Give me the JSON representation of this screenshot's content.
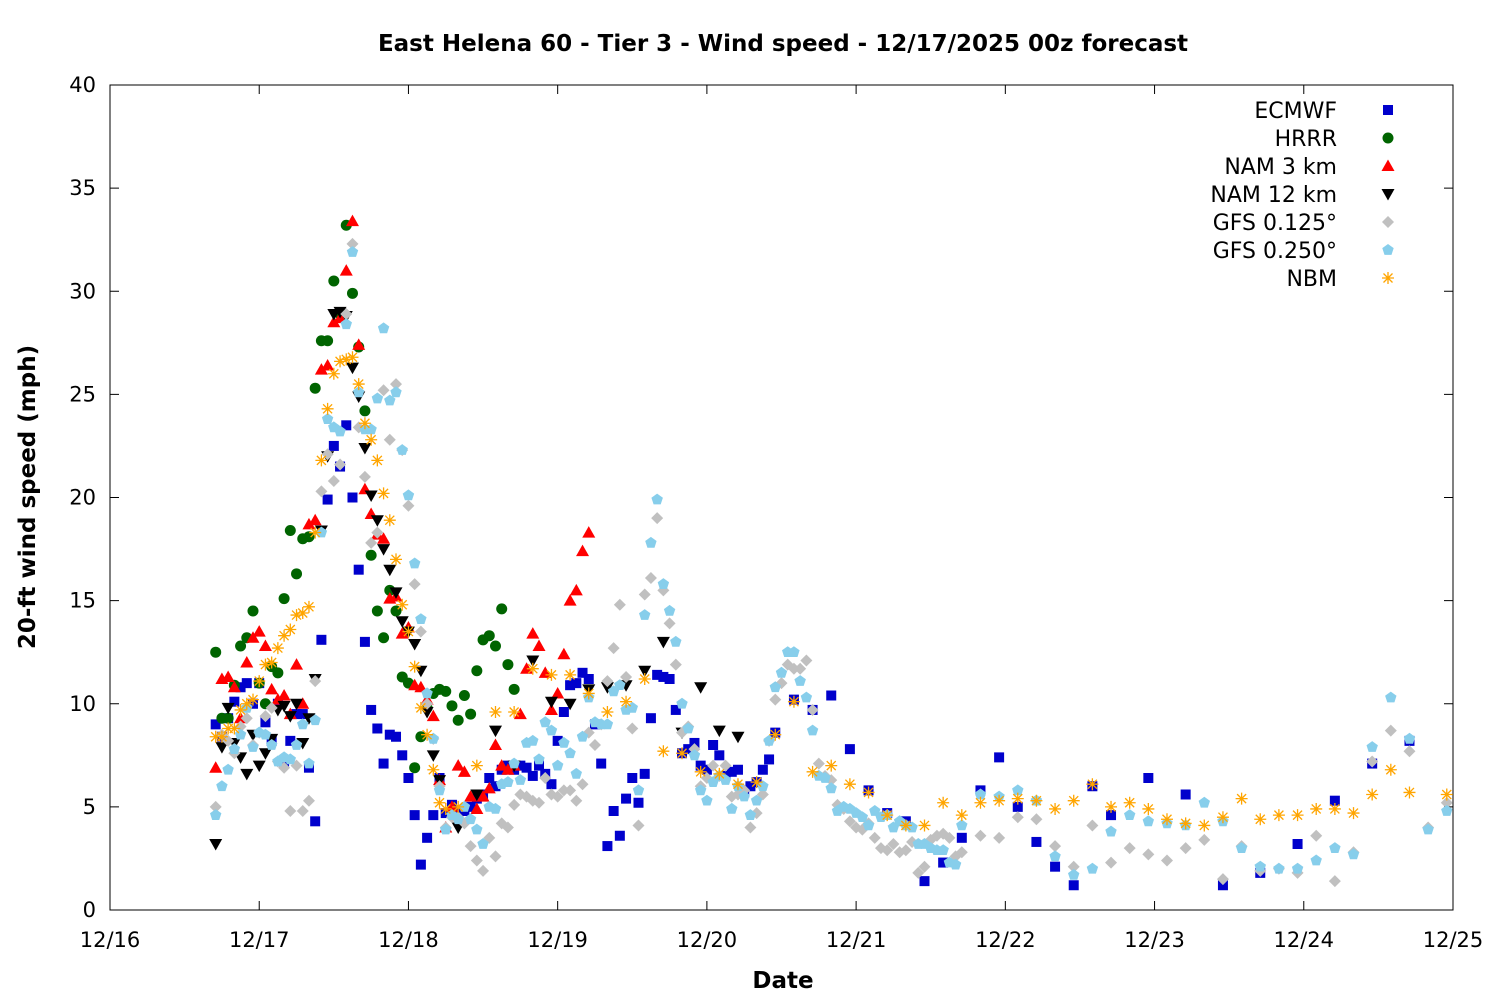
{
  "chart_data": {
    "type": "scatter",
    "title": "East Helena 60 - Tier 3 - Wind speed - 12/17/2025 00z forecast",
    "xlabel": "Date",
    "ylabel": "20-ft wind speed (mph)",
    "xlim": [
      "2025-12-16T00:00Z",
      "2025-12-25T00:00Z"
    ],
    "ylim": [
      0,
      40
    ],
    "x_ticks": [
      "12/16",
      "12/17",
      "12/18",
      "12/19",
      "12/20",
      "12/21",
      "12/22",
      "12/23",
      "12/24",
      "12/25"
    ],
    "y_ticks": [
      "0",
      "5",
      "10",
      "15",
      "20",
      "25",
      "30",
      "35",
      "40"
    ],
    "grid": false,
    "legend_position": "top-right",
    "series": [
      {
        "name": "ECMWF",
        "marker": "square",
        "color": "#0000cc",
        "segments": [
          {
            "start": "2025-12-16T17:00Z",
            "step_hours": 1,
            "values": [
              9.0,
              8.4,
              9.3,
              10.1,
              10.8,
              11.0,
              10.0,
              11.0,
              9.1,
              8.2,
              10.0,
              7.2,
              8.2,
              9.5,
              9.5,
              6.9,
              4.3,
              13.1,
              19.9,
              22.5,
              21.5,
              23.5,
              20.0,
              16.5,
              13.0,
              9.7,
              8.8,
              7.1,
              8.5,
              8.4,
              7.5,
              6.4,
              4.6,
              2.2,
              3.5,
              4.6,
              6.4,
              4.7,
              5.1,
              4.7,
              4.8,
              5.0,
              5.4,
              5.6,
              6.4,
              6.0,
              6.8,
              7.0,
              6.8,
              7.0,
              6.9,
              6.5,
              7.0,
              6.6,
              6.1,
              8.2,
              9.6,
              10.9,
              11.0,
              11.5,
              11.2,
              9.0,
              7.1,
              3.1,
              4.8,
              3.6,
              5.4,
              6.4,
              5.2,
              6.6,
              9.3,
              11.4,
              11.3,
              11.2,
              9.7,
              7.6,
              7.8,
              8.1,
              7.0,
              6.8,
              8.0,
              7.5,
              6.5,
              6.7,
              6.8,
              5.7,
              6.0,
              6.2,
              6.8,
              7.3,
              8.6
            ]
          },
          {
            "start": "2025-12-20T14:00Z",
            "step_hours": 3,
            "values": [
              10.2,
              9.7,
              10.4,
              7.8,
              5.8,
              4.7,
              4.3,
              1.4,
              2.3,
              3.5,
              5.8,
              7.4,
              5.0,
              3.3,
              2.1,
              1.2,
              6.0
            ]
          },
          {
            "start": "2025-12-22T17:00Z",
            "step_hours": 6,
            "values": [
              4.6,
              6.4,
              5.6,
              1.2,
              1.8,
              3.2,
              5.3,
              7.1,
              8.2
            ]
          }
        ]
      },
      {
        "name": "HRRR",
        "marker": "circle",
        "color": "#006400",
        "segments": [
          {
            "start": "2025-12-16T17:00Z",
            "step_hours": 1,
            "values": [
              12.5,
              9.3,
              9.3,
              10.9,
              12.8,
              13.2,
              14.5,
              11.0,
              10.0,
              11.8,
              11.5,
              15.1,
              18.4,
              16.3,
              18.0,
              18.1,
              25.3,
              27.6,
              27.6,
              30.5,
              28.9,
              33.2,
              29.9,
              27.3,
              24.2,
              17.2,
              14.5,
              13.2,
              15.5,
              14.5,
              11.3,
              11.0,
              6.9,
              8.4,
              9.8,
              10.5,
              10.7,
              10.6,
              9.9,
              9.2,
              10.4,
              9.5,
              11.6,
              13.1,
              13.3,
              12.8,
              14.6,
              11.9,
              10.7
            ]
          }
        ]
      },
      {
        "name": "NAM 3 km",
        "marker": "triangle-up",
        "color": "#ff0000",
        "segments": [
          {
            "start": "2025-12-16T17:00Z",
            "step_hours": 1,
            "values": [
              6.9,
              11.2,
              11.3,
              10.8,
              9.3,
              12.0,
              13.2,
              13.5,
              12.8,
              10.7,
              10.2,
              10.4,
              9.5,
              11.9,
              10.0,
              18.7,
              18.9,
              26.2,
              26.4,
              28.5,
              28.7,
              31.0,
              33.4,
              27.4,
              20.4,
              19.2,
              18.2,
              18.0,
              15.1,
              15.2,
              13.4,
              13.7,
              10.9,
              10.8,
              10.2,
              9.4,
              6.3,
              4.0,
              5.0,
              7.0,
              6.7,
              5.5,
              4.9,
              5.5,
              5.9,
              8.0,
              7.0,
              6.8,
              7.0,
              9.5,
              11.7,
              13.4,
              12.8,
              11.5,
              9.7,
              10.5,
              12.4,
              15.0,
              15.5,
              17.4,
              18.3
            ]
          }
        ]
      },
      {
        "name": "NAM 12 km",
        "marker": "triangle-down",
        "color": "#000000",
        "segments": [
          {
            "start": "2025-12-16T17:00Z",
            "step_hours": 1,
            "values": [
              3.2,
              7.9,
              9.8,
              8.1,
              7.4,
              6.6,
              8.5,
              7.0,
              7.6,
              8.3,
              9.7,
              9.9,
              9.4,
              10.0,
              8.1,
              9.3,
              11.2,
              18.4,
              22.0,
              28.9,
              29.0,
              28.8,
              26.3,
              24.9,
              22.4,
              20.1,
              18.9,
              17.5,
              16.5,
              15.4,
              14.0,
              13.5,
              12.9,
              11.6,
              9.6,
              7.5,
              6.3
            ]
          },
          {
            "start": "2025-12-18T08:00Z",
            "step_hours": 3,
            "values": [
              4.0,
              5.6,
              8.7,
              7.0,
              12.1,
              10.1,
              10.0,
              10.7,
              10.8,
              10.9,
              11.6,
              13.0,
              8.6,
              10.8,
              8.7,
              8.4
            ]
          }
        ]
      },
      {
        "name": "GFS 0.125°",
        "marker": "diamond",
        "color": "#c0c0c0",
        "segments": [
          {
            "start": "2025-12-16T17:00Z",
            "step_hours": 1,
            "values": [
              5.0,
              8.5,
              8.2,
              7.6,
              8.9,
              9.3,
              8.0,
              8.6,
              9.4,
              9.8,
              7.2,
              6.9,
              4.8,
              7.0,
              4.8,
              5.3,
              11.1,
              20.3,
              22.1,
              20.8,
              21.6,
              28.9,
              32.3,
              23.4,
              21.0,
              17.8,
              18.3,
              25.2,
              22.8,
              25.5,
              22.3,
              19.6,
              15.8,
              13.5,
              10.0,
              8.3,
              6.0,
              4.0,
              4.5,
              4.5,
              4.2,
              3.1,
              2.4,
              1.9,
              3.5,
              2.6,
              4.2,
              4.0,
              5.1,
              5.6,
              5.5,
              5.3,
              5.2,
              6.4,
              5.6,
              5.5,
              5.8,
              5.8,
              5.3,
              6.1,
              8.6,
              8.0,
              9.0,
              11.1,
              12.7,
              14.8,
              11.3,
              8.8,
              4.1,
              15.3,
              16.1,
              19.0,
              15.5,
              13.9,
              11.9,
              8.6,
              8.9,
              7.8,
              6.0,
              6.4,
              7.0,
              6.5,
              7.0,
              5.5,
              5.6,
              5.8,
              4.0,
              4.7,
              5.6,
              8.2,
              10.2,
              11.0,
              11.9,
              11.7,
              11.7,
              12.1,
              9.7,
              7.1,
              6.5,
              6.3,
              5.1,
              4.9,
              4.3,
              4.0,
              3.9,
              4.2,
              3.5,
              3.0,
              2.9,
              3.2,
              2.8,
              2.9,
              3.3,
              1.8,
              2.1,
              3.4,
              3.6,
              3.7,
              3.5,
              2.6,
              2.8
            ]
          },
          {
            "start": "2025-12-21T20:00Z",
            "step_hours": 3,
            "values": [
              3.6,
              3.5,
              4.5,
              4.4,
              3.1,
              2.1,
              4.1,
              2.3,
              3.0,
              2.7,
              2.4,
              3.0,
              3.4,
              1.5,
              3.1,
              1.9,
              2.0,
              1.8,
              3.6,
              1.4,
              2.8,
              7.2,
              8.7,
              7.7,
              4.0,
              5.2
            ]
          }
        ]
      },
      {
        "name": "GFS 0.250°",
        "marker": "pentagon",
        "color": "#87ceeb",
        "segments": [
          {
            "start": "2025-12-16T17:00Z",
            "step_hours": 1,
            "values": [
              4.6,
              6.0,
              6.8,
              7.8,
              8.5,
              9.8,
              7.9,
              8.6,
              8.5,
              8.0,
              7.2,
              7.4,
              7.3,
              8.0,
              9.0,
              7.1,
              9.2,
              18.3,
              23.8,
              23.4,
              23.2,
              28.4,
              31.9,
              25.1,
              23.3,
              23.3,
              24.8,
              28.2,
              24.7,
              25.1,
              22.3,
              20.1,
              16.8,
              14.1,
              10.5,
              8.3,
              5.8,
              3.9,
              4.6,
              4.4,
              5.0,
              4.4,
              3.9,
              3.2,
              5.0,
              4.9,
              6.1,
              6.2,
              7.1,
              6.3,
              8.1,
              8.2,
              7.3,
              9.1,
              8.7,
              7.0,
              8.1,
              7.6,
              6.6,
              8.4,
              10.3,
              9.1,
              9.0,
              9.0,
              10.6,
              10.9,
              9.7,
              9.8,
              5.8,
              14.3,
              17.8,
              19.9,
              15.8,
              14.5,
              13.0,
              10.0,
              8.8,
              7.5,
              5.8,
              5.3,
              6.2,
              6.5,
              6.3,
              4.9,
              6.0,
              5.5,
              4.6,
              5.3,
              6.0,
              8.2,
              10.8,
              11.5,
              12.5,
              12.5,
              11.1,
              10.3,
              8.7,
              6.5,
              6.4,
              5.9,
              4.8,
              5.0,
              4.9,
              4.7,
              4.5,
              4.1,
              4.8,
              4.5,
              4.6,
              4.0,
              4.3,
              4.1,
              4.0,
              3.2,
              3.2,
              3.0,
              2.9,
              2.9,
              2.3,
              2.2,
              4.1
            ]
          },
          {
            "start": "2025-12-21T20:00Z",
            "step_hours": 3,
            "values": [
              5.6,
              5.5,
              5.8,
              5.3,
              2.6,
              1.7,
              2.0,
              3.8,
              4.6,
              4.3,
              4.2,
              4.1,
              5.2,
              4.3,
              3.0,
              2.1,
              2.0,
              2.0,
              2.4,
              3.0,
              2.7,
              7.9,
              10.3,
              8.3,
              3.9,
              4.8
            ]
          }
        ]
      },
      {
        "name": "NBM",
        "marker": "asterisk",
        "color": "#ffa500",
        "segments": [
          {
            "start": "2025-12-16T17:00Z",
            "step_hours": 1,
            "values": [
              8.4,
              8.4,
              8.8,
              8.8,
              9.7,
              10.0,
              10.2,
              11.1,
              11.9,
              12.0,
              12.7,
              13.3,
              13.6,
              14.3,
              14.4,
              14.7,
              18.3,
              21.8,
              24.3,
              26.0,
              26.6,
              26.7,
              26.8,
              25.5,
              23.6,
              22.8,
              21.8,
              20.2,
              18.9,
              17.0,
              14.8,
              13.5,
              11.8,
              9.8,
              8.5,
              6.8,
              5.2,
              4.9
            ]
          },
          {
            "start": "2025-12-18T08:00Z",
            "step_hours": 3,
            "values": [
              5.0,
              7.0,
              9.6,
              9.6,
              11.7,
              11.4,
              11.4,
              10.5,
              9.6,
              10.1,
              11.2,
              7.7,
              7.6,
              6.7,
              6.6,
              6.1,
              6.2,
              8.5,
              10.1,
              6.7,
              7.0,
              6.1,
              5.7,
              4.6,
              4.1,
              4.1,
              5.2,
              4.6,
              5.2,
              5.3,
              5.4,
              5.3,
              4.9,
              5.3,
              6.1,
              5.0,
              5.2,
              4.9,
              4.4,
              4.2,
              4.1,
              4.5,
              5.4,
              4.4,
              4.6,
              4.6,
              4.9,
              4.9,
              4.7,
              5.6,
              6.8,
              5.7,
              null,
              5.6
            ]
          }
        ]
      }
    ]
  }
}
